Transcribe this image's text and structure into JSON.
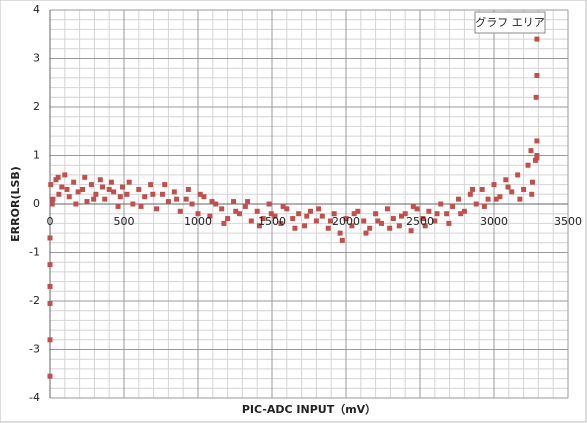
{
  "chart_data": {
    "type": "scatter",
    "x_label": "PIC-ADC INPUT（mV）",
    "y_label": "ERROR(LSB)",
    "tooltip": "グラフ エリア",
    "color": "#c0504d",
    "xlim": [
      0,
      3500
    ],
    "xticks": [
      0,
      500,
      1000,
      1500,
      2000,
      2500,
      3000,
      3500
    ],
    "ylim": [
      -4,
      4
    ],
    "yticks": [
      -4,
      -3,
      -2,
      -1,
      0,
      1,
      2,
      3,
      4
    ],
    "grid": true,
    "minor_grid": true,
    "x": [
      5,
      20,
      40,
      60,
      80,
      100,
      130,
      160,
      190,
      220,
      250,
      280,
      310,
      340,
      370,
      400,
      430,
      460,
      490,
      520,
      560,
      600,
      640,
      680,
      720,
      760,
      800,
      840,
      880,
      920,
      960,
      1000,
      1040,
      1080,
      1120,
      1160,
      1200,
      1240,
      1280,
      1320,
      1360,
      1400,
      1440,
      1480,
      1520,
      1560,
      1600,
      1640,
      1680,
      1720,
      1760,
      1800,
      1840,
      1880,
      1920,
      1960,
      2000,
      2040,
      2080,
      2120,
      2160,
      2200,
      2240,
      2280,
      2320,
      2360,
      2400,
      2440,
      2480,
      2520,
      2560,
      2600,
      2640,
      2680,
      2720,
      2760,
      2800,
      2840,
      2880,
      2920,
      2960,
      3000,
      3040,
      3080,
      3120,
      3160,
      3200,
      3230,
      3260,
      3280,
      15,
      55,
      115,
      175,
      235,
      295,
      355,
      415,
      475,
      535,
      615,
      695,
      775,
      855,
      935,
      1015,
      1095,
      1175,
      1255,
      1335,
      1415,
      1495,
      1575,
      1655,
      1735,
      1815,
      1895,
      1975,
      2055,
      2135,
      2215,
      2295,
      2375,
      2455,
      2535,
      2615,
      2695,
      2775,
      2855,
      2935,
      3015,
      3095,
      3175,
      3255,
      0,
      0,
      0,
      0,
      0,
      0,
      3290,
      3290,
      3285,
      3290,
      3290,
      3250,
      3290
    ],
    "values": [
      0.4,
      0.1,
      0.5,
      0.2,
      0.35,
      0.6,
      0.15,
      0.45,
      0.25,
      0.3,
      0.05,
      0.4,
      0.2,
      0.5,
      0.1,
      0.3,
      0.25,
      -0.05,
      0.35,
      0.2,
      0.0,
      0.3,
      0.15,
      0.4,
      -0.1,
      0.2,
      0.05,
      0.25,
      -0.15,
      0.1,
      0.0,
      -0.2,
      0.15,
      -0.25,
      0.0,
      -0.1,
      -0.3,
      0.05,
      -0.2,
      -0.05,
      -0.35,
      -0.15,
      -0.3,
      0.0,
      -0.25,
      -0.4,
      -0.1,
      -0.3,
      -0.2,
      -0.45,
      -0.15,
      -0.35,
      -0.25,
      -0.5,
      -0.2,
      -0.6,
      -0.3,
      -0.45,
      -0.15,
      -0.35,
      -0.5,
      -0.2,
      -0.4,
      -0.1,
      -0.3,
      -0.45,
      -0.2,
      -0.55,
      -0.1,
      -0.3,
      -0.15,
      -0.35,
      0.0,
      -0.2,
      -0.05,
      0.1,
      -0.15,
      0.2,
      0.0,
      0.3,
      0.1,
      0.4,
      0.15,
      0.5,
      0.25,
      0.6,
      0.3,
      0.8,
      0.45,
      0.9,
      0.0,
      0.55,
      0.3,
      0.0,
      0.55,
      0.1,
      0.35,
      0.45,
      0.15,
      0.45,
      -0.05,
      0.2,
      0.4,
      0.1,
      0.3,
      0.2,
      0.05,
      -0.4,
      -0.15,
      0.05,
      -0.45,
      -0.2,
      -0.05,
      -0.5,
      -0.25,
      -0.1,
      -0.35,
      -0.75,
      -0.2,
      -0.6,
      -0.35,
      -0.5,
      -0.25,
      -0.05,
      -0.45,
      -0.2,
      -0.4,
      -0.2,
      0.3,
      -0.05,
      0.1,
      0.35,
      0.1,
      0.2,
      -0.7,
      -1.25,
      -1.7,
      -2.05,
      -2.8,
      -3.55,
      1.0,
      1.3,
      2.2,
      2.65,
      3.4,
      1.1,
      0.95
    ]
  }
}
